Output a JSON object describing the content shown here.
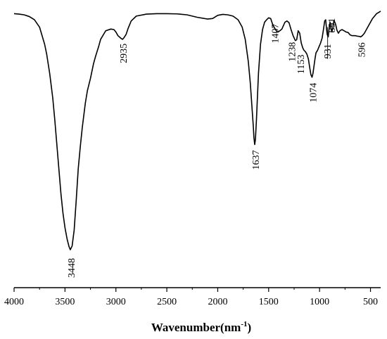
{
  "chart_data": {
    "type": "line",
    "title": "",
    "xlabel": "Wavenumber(nm",
    "xlabel_superscript": "-1",
    "xlabel_close": ")",
    "ylabel": "",
    "xlim": [
      4000,
      400
    ],
    "x_reversed": true,
    "ylim": [
      0,
      100
    ],
    "y_ticks_shown": false,
    "grid": false,
    "legend": "none",
    "line_color": "#000000",
    "x_ticks": [
      4000,
      3500,
      3000,
      2500,
      2000,
      1500,
      1000,
      500
    ],
    "x_tick_labels": [
      "4000",
      "3500",
      "3000",
      "2500",
      "2000",
      "1500",
      "1000",
      "500"
    ],
    "series": [
      {
        "x": [
          4000,
          3950,
          3900,
          3850,
          3800,
          3750,
          3700,
          3680,
          3650,
          3620,
          3600,
          3580,
          3560,
          3540,
          3520,
          3500,
          3480,
          3460,
          3448,
          3430,
          3410,
          3390,
          3370,
          3350,
          3330,
          3300,
          3280,
          3250,
          3220,
          3200,
          3170,
          3150,
          3100,
          3050,
          3020,
          3000,
          2980,
          2950,
          2935,
          2920,
          2900,
          2880,
          2850,
          2800,
          2700,
          2600,
          2500,
          2400,
          2300,
          2200,
          2100,
          2050,
          2000,
          1950,
          1900,
          1850,
          1800,
          1760,
          1730,
          1700,
          1680,
          1660,
          1650,
          1645,
          1637,
          1630,
          1620,
          1600,
          1580,
          1560,
          1540,
          1520,
          1500,
          1480,
          1460,
          1440,
          1420,
          1407,
          1390,
          1370,
          1340,
          1320,
          1300,
          1280,
          1260,
          1238,
          1225,
          1210,
          1195,
          1180,
          1165,
          1153,
          1140,
          1125,
          1110,
          1095,
          1085,
          1074,
          1065,
          1055,
          1045,
          1035,
          1020,
          1005,
          990,
          975,
          960,
          950,
          940,
          931,
          925,
          915,
          905,
          897,
          891,
          880,
          870,
          860,
          850,
          840,
          830,
          815,
          800,
          780,
          760,
          740,
          720,
          700,
          680,
          650,
          630,
          610,
          596,
          580,
          560,
          540,
          520,
          500,
          480,
          460,
          440,
          420,
          400
        ],
        "y": [
          98.5,
          98.3,
          98.0,
          97.3,
          96.0,
          93.0,
          86.0,
          82.0,
          74.0,
          64.0,
          55.0,
          45.0,
          35.0,
          25.0,
          17.0,
          11.0,
          6.5,
          3.2,
          2.0,
          3.5,
          10.0,
          22.0,
          35.0,
          44.0,
          52.0,
          62.0,
          67.0,
          72.0,
          78.0,
          81.0,
          85.0,
          88.0,
          91.5,
          92.2,
          92.0,
          91.0,
          89.5,
          88.4,
          88.0,
          88.7,
          90.0,
          92.5,
          95.5,
          97.5,
          98.3,
          98.5,
          98.5,
          98.4,
          98.0,
          97.0,
          96.3,
          96.5,
          97.8,
          98.2,
          98.0,
          97.5,
          96.0,
          93.0,
          88.0,
          79.0,
          70.0,
          58.0,
          52.0,
          48.0,
          45.0,
          47.0,
          55.0,
          74.0,
          86.0,
          92.0,
          95.0,
          96.0,
          96.8,
          96.5,
          94.0,
          92.5,
          91.2,
          91.0,
          91.5,
          92.2,
          95.0,
          95.5,
          94.8,
          92.0,
          89.5,
          87.5,
          87.8,
          91.5,
          90.5,
          86.5,
          84.5,
          83.5,
          83.0,
          82.0,
          80.0,
          76.0,
          73.5,
          72.5,
          74.0,
          77.0,
          80.0,
          82.5,
          83.5,
          85.0,
          86.5,
          88.5,
          92.5,
          95.5,
          96.0,
          92.0,
          90.0,
          89.0,
          93.0,
          95.0,
          93.5,
          91.0,
          92.5,
          95.5,
          95.0,
          93.8,
          91.8,
          90.5,
          91.5,
          92.0,
          91.5,
          91.0,
          90.8,
          89.8,
          89.5,
          89.5,
          89.3,
          89.2,
          89.0,
          89.5,
          90.5,
          92.0,
          93.5,
          95.0,
          96.5,
          97.5,
          98.5,
          99.0,
          99.5
        ]
      }
    ],
    "annotations": [
      {
        "text": "3448",
        "x": 3448,
        "y": 2.0
      },
      {
        "text": "2935",
        "x": 2935,
        "y": 88.0
      },
      {
        "text": "1637",
        "x": 1637,
        "y": 45.0
      },
      {
        "text": "1407",
        "x": 1407,
        "y": 91.0
      },
      {
        "text": "1238",
        "x": 1238,
        "y": 87.5
      },
      {
        "text": "1153",
        "x": 1153,
        "y": 83.5
      },
      {
        "text": "1074",
        "x": 1074,
        "y": 72.5
      },
      {
        "text": "931",
        "x": 931,
        "y": 89.0
      },
      {
        "text": "891",
        "x": 891,
        "y": 91.0
      },
      {
        "text": "596",
        "x": 596,
        "y": 89.0
      }
    ]
  }
}
